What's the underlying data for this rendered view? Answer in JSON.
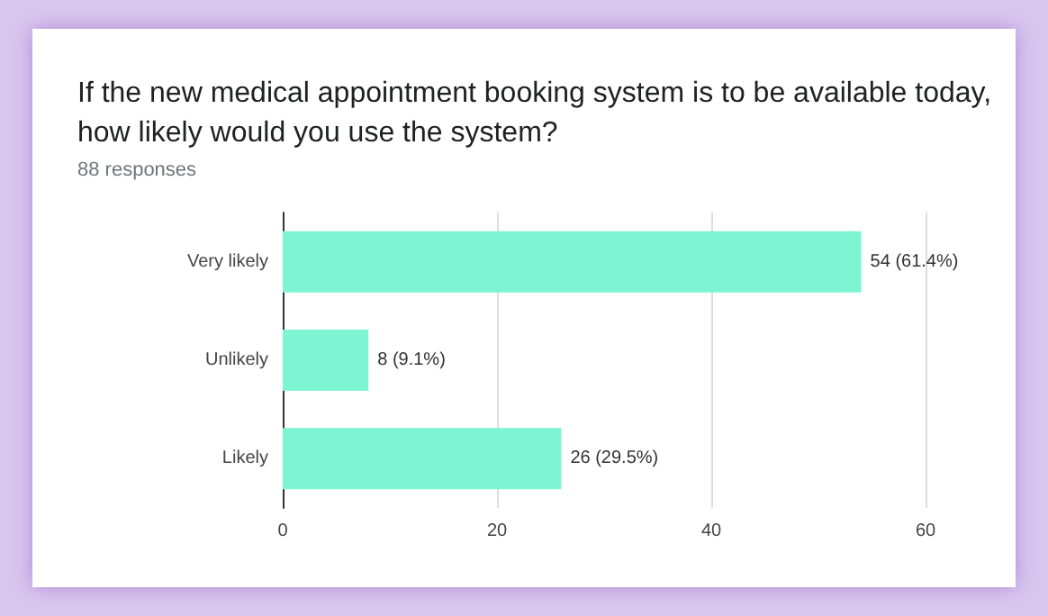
{
  "chart_data": {
    "type": "bar",
    "orientation": "horizontal",
    "title": "If the new medical appointment booking system is to be available today, how likely would you use the system?",
    "subtitle": "88 responses",
    "categories": [
      "Very likely",
      "Unlikely",
      "Likely"
    ],
    "values": [
      54,
      8,
      26
    ],
    "value_labels": [
      "54 (61.4%)",
      "8 (9.1%)",
      "26 (29.5%)"
    ],
    "color": "#7ef5d2",
    "xlim": [
      0,
      60
    ],
    "xticks": [
      0,
      20,
      40,
      60
    ],
    "grid": "x"
  }
}
